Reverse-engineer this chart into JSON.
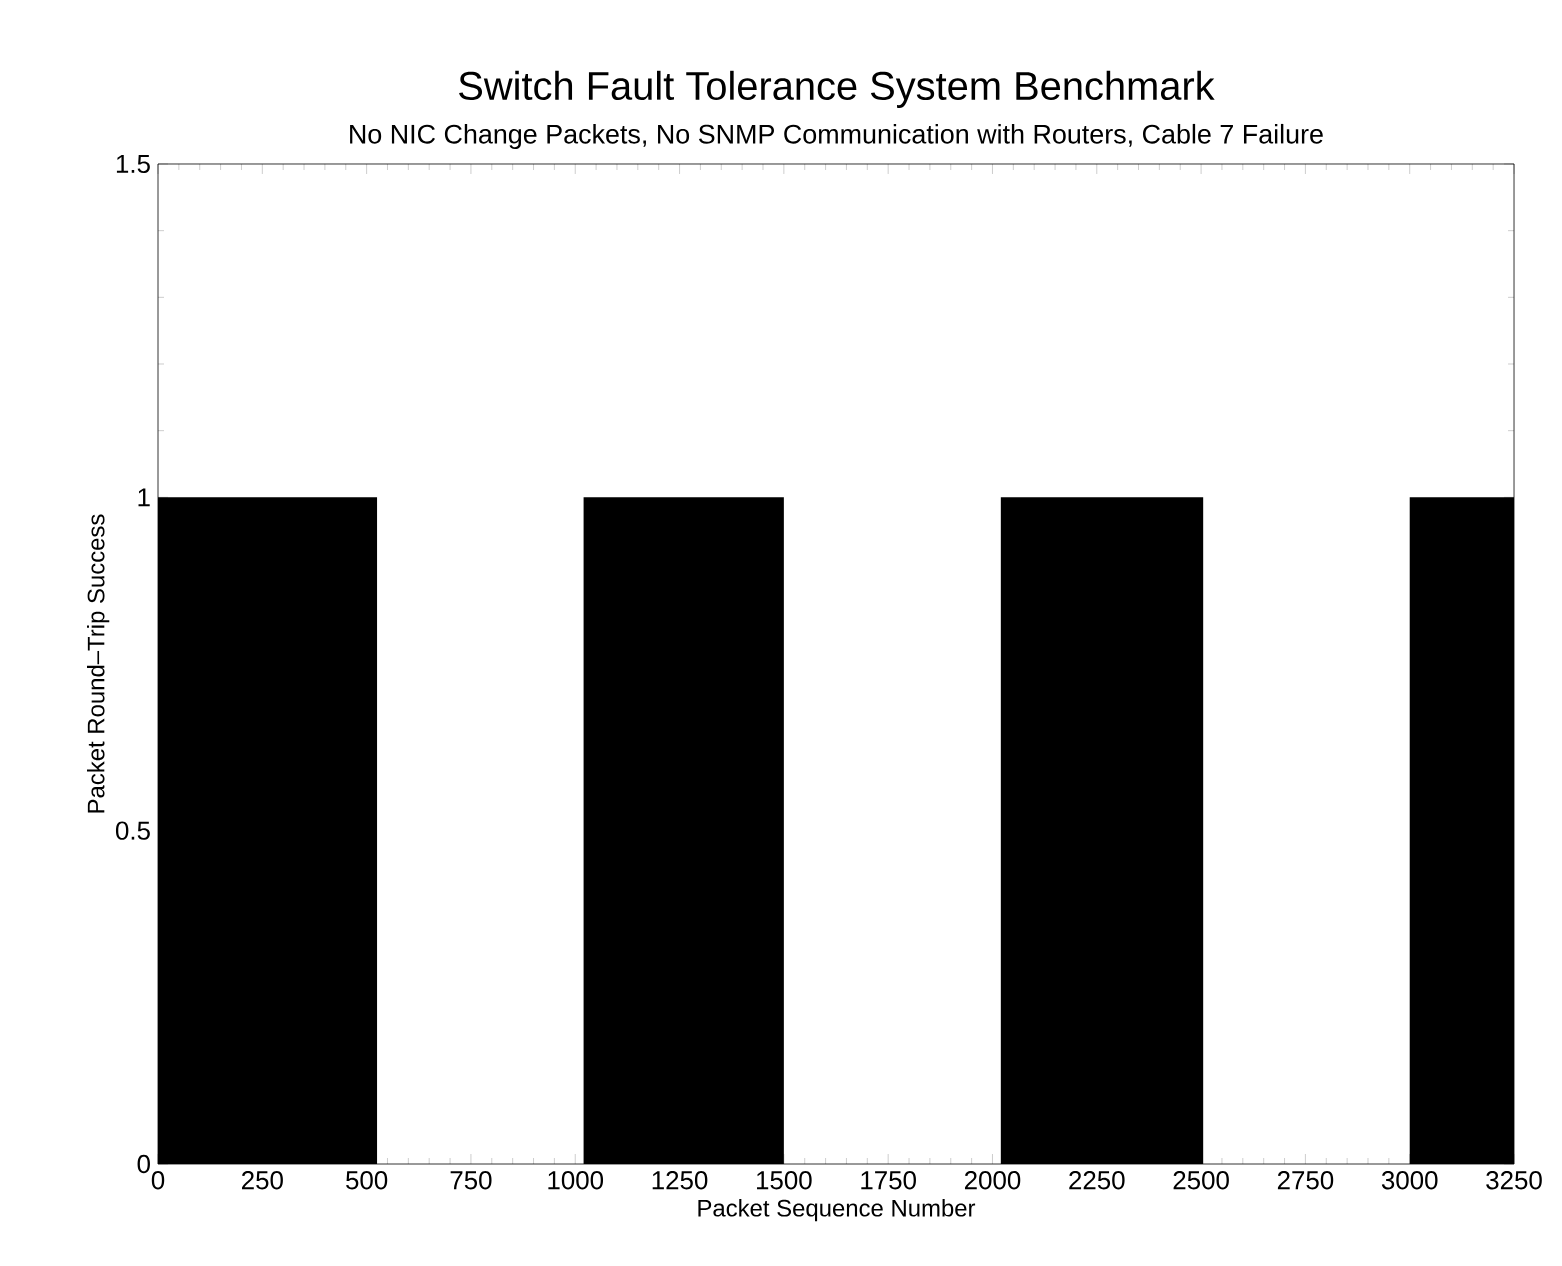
{
  "chart_data": {
    "type": "area",
    "title": "Switch Fault Tolerance System Benchmark",
    "subtitle": "No NIC Change Packets, No SNMP Communication with Routers, Cable 7 Failure",
    "xlabel": "Packet Sequence Number",
    "ylabel": "Packet Round–Trip Success",
    "series": [
      {
        "color": "#000000",
        "x": [
          0,
          525,
          525,
          1020,
          1020,
          1500,
          1500,
          2020,
          2020,
          2505,
          2505,
          3000,
          3000,
          3250
        ],
        "values": [
          1,
          1,
          0,
          0,
          1,
          1,
          0,
          0,
          1,
          1,
          0,
          0,
          1,
          1
        ]
      }
    ],
    "xlim": [
      0,
      3250
    ],
    "ylim": [
      0,
      1.5
    ],
    "xticks": [
      0,
      250,
      500,
      750,
      1000,
      1250,
      1500,
      1750,
      2000,
      2250,
      2500,
      2750,
      3000,
      3250
    ],
    "yticks": [
      0,
      0.5,
      1,
      1.5
    ]
  }
}
